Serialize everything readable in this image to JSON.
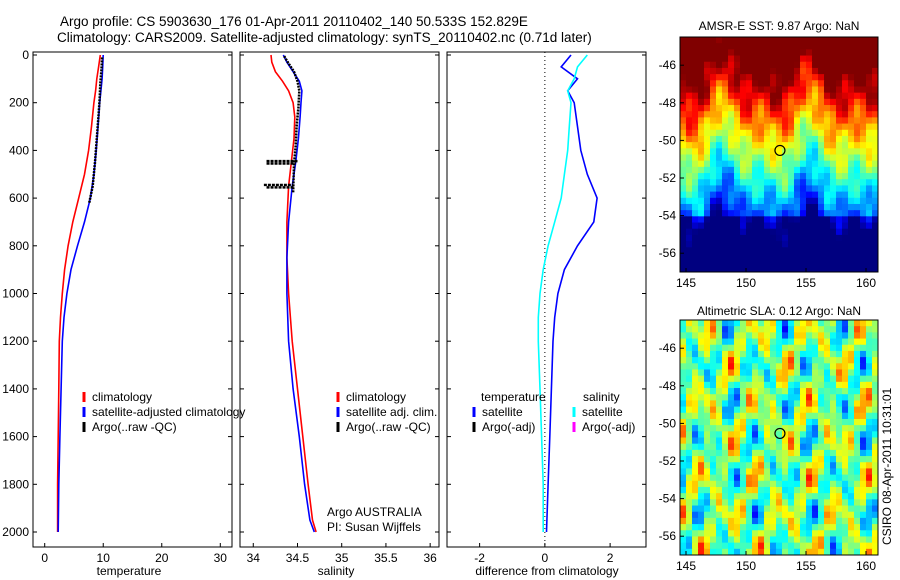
{
  "header": {
    "line1": "Argo profile: CS 5903630_176 01-Apr-2011 20110402_140 50.533S 152.829E",
    "line2": "Climatology: CARS2009. Satellite-adjusted climatology: synTS_20110402.nc (0.71d later)"
  },
  "colors": {
    "climatology": "#ff0000",
    "satellite": "#0000ff",
    "argo": "#000000",
    "sat_salinity": "#00ffff",
    "argo_adj_salinity": "#ff00ff",
    "frame": "#000000"
  },
  "chart_data": [
    {
      "id": "temperature",
      "type": "line",
      "xlabel": "temperature",
      "ylabel": "",
      "xlim": [
        -2,
        32
      ],
      "ylim": [
        2050,
        0
      ],
      "xticks": [
        0,
        10,
        20,
        30
      ],
      "yticks": [
        0,
        200,
        400,
        600,
        800,
        1000,
        1200,
        1400,
        1600,
        1800,
        2000
      ],
      "legend": [
        "climatology",
        "satellite-adjusted climatology",
        "Argo(..raw -QC)"
      ],
      "legend_position": "bottom-right",
      "series": [
        {
          "name": "climatology",
          "color": "#ff0000",
          "x": [
            9.5,
            9.2,
            8.9,
            8.7,
            8.4,
            8.0,
            7.5,
            6.8,
            5.8,
            4.8,
            4.0,
            3.4,
            3.0,
            2.7,
            2.5,
            2.4,
            2.3,
            2.2,
            2.2
          ],
          "y": [
            0,
            50,
            100,
            150,
            200,
            300,
            400,
            500,
            600,
            700,
            800,
            900,
            1000,
            1100,
            1200,
            1400,
            1600,
            1800,
            2000
          ]
        },
        {
          "name": "satellite-adjusted climatology",
          "color": "#0000ff",
          "x": [
            10.0,
            9.9,
            9.8,
            9.6,
            9.4,
            9.1,
            8.8,
            8.4,
            7.8,
            6.8,
            5.6,
            4.5,
            3.8,
            3.3,
            3.0,
            2.8,
            2.6,
            2.4,
            2.3
          ],
          "y": [
            0,
            50,
            100,
            150,
            200,
            300,
            400,
            500,
            600,
            700,
            800,
            900,
            1000,
            1100,
            1200,
            1400,
            1600,
            1800,
            2000
          ]
        },
        {
          "name": "Argo(..raw -QC)",
          "color": "#000000",
          "x": [
            9.8,
            9.7,
            9.5,
            9.4,
            9.2,
            8.9,
            8.6,
            8.2,
            7.6
          ],
          "y": [
            10,
            60,
            120,
            180,
            250,
            350,
            450,
            550,
            620
          ]
        }
      ]
    },
    {
      "id": "salinity",
      "type": "line",
      "xlabel": "salinity",
      "ylabel": "",
      "xlim": [
        33.85,
        36.1
      ],
      "ylim": [
        2050,
        0
      ],
      "xticks": [
        34,
        34.5,
        35,
        35.5,
        36
      ],
      "legend": [
        "climatology",
        "satellite adj. clim.",
        "Argo(..raw -QC)"
      ],
      "legend_position": "bottom-right",
      "annotation": [
        "Argo AUSTRALIA",
        "PI: Susan Wijffels"
      ],
      "series": [
        {
          "name": "climatology",
          "color": "#ff0000",
          "x": [
            34.2,
            34.21,
            34.25,
            34.33,
            34.4,
            34.45,
            34.47,
            34.46,
            34.43,
            34.4,
            34.38,
            34.38,
            34.4,
            34.44,
            34.5,
            34.56,
            34.62,
            34.67,
            34.71
          ],
          "y": [
            0,
            30,
            70,
            110,
            150,
            200,
            260,
            350,
            450,
            550,
            700,
            850,
            1000,
            1200,
            1400,
            1600,
            1800,
            1950,
            2000
          ]
        },
        {
          "name": "satellite adj. clim.",
          "color": "#0000ff",
          "x": [
            34.34,
            34.38,
            34.45,
            34.52,
            34.55,
            34.54,
            34.53,
            34.51,
            34.48,
            34.44,
            34.4,
            34.38,
            34.38,
            34.4,
            34.45,
            34.52,
            34.58,
            34.64,
            34.69
          ],
          "y": [
            0,
            30,
            70,
            110,
            150,
            200,
            260,
            350,
            450,
            550,
            700,
            850,
            1000,
            1200,
            1400,
            1600,
            1800,
            1950,
            2000
          ]
        },
        {
          "name": "Argo(..raw -QC)",
          "color": "#000000",
          "x": [
            34.35,
            34.39,
            34.46,
            34.5,
            34.52,
            34.51,
            34.49,
            34.48,
            34.46,
            34.45
          ],
          "y": [
            5,
            30,
            70,
            110,
            150,
            220,
            300,
            380,
            460,
            580
          ]
        }
      ]
    },
    {
      "id": "difference",
      "type": "line",
      "xlabel": "difference from climatology",
      "ylabel": "",
      "xlim": [
        -3,
        3.1
      ],
      "ylim": [
        2050,
        0
      ],
      "xticks": [
        -2,
        0,
        2
      ],
      "legend_groups": [
        {
          "title": "temperature",
          "items": [
            "satellite",
            "Argo(-adj)"
          ]
        },
        {
          "title": "salinity",
          "items": [
            "satellite",
            "Argo(-adj)"
          ]
        }
      ],
      "legend_position": "bottom",
      "series": [
        {
          "name": "satellite",
          "quantity": "temperature",
          "color": "#0000ff",
          "x": [
            0.8,
            0.5,
            1.0,
            0.7,
            0.9,
            1.0,
            1.1,
            1.3,
            1.6,
            1.5,
            1.0,
            0.6,
            0.4,
            0.3,
            0.25,
            0.2,
            0.15,
            0.1,
            0.05
          ],
          "y": [
            0,
            50,
            100,
            150,
            200,
            300,
            400,
            500,
            600,
            700,
            800,
            900,
            1000,
            1100,
            1200,
            1400,
            1600,
            1800,
            2000
          ]
        },
        {
          "name": "satellite",
          "quantity": "salinity",
          "color": "#00ffff",
          "x": [
            1.3,
            1.0,
            0.9,
            0.7,
            0.8,
            0.75,
            0.7,
            0.6,
            0.5,
            0.3,
            0.1,
            -0.05,
            -0.15,
            -0.2,
            -0.2,
            -0.15,
            -0.1,
            -0.05,
            -0.05
          ],
          "y": [
            0,
            50,
            100,
            150,
            200,
            300,
            400,
            500,
            600,
            700,
            800,
            900,
            1000,
            1100,
            1200,
            1400,
            1600,
            1800,
            2000
          ]
        }
      ]
    },
    {
      "id": "sst-map",
      "type": "heatmap",
      "title": "AMSR-E SST: 9.87 Argo: NaN",
      "xlim": [
        144.5,
        161
      ],
      "ylim": [
        -57,
        -44.5
      ],
      "xticks": [
        145,
        150,
        155,
        160
      ],
      "yticks": [
        -46,
        -48,
        -50,
        -52,
        -54,
        -56
      ],
      "marker": {
        "lon": 152.829,
        "lat": -50.533
      }
    },
    {
      "id": "sla-map",
      "type": "heatmap",
      "title": "Altimetric SLA: 0.12 Argo: NaN",
      "xlim": [
        144.5,
        161
      ],
      "ylim": [
        -57,
        -44.5
      ],
      "xticks": [
        145,
        150,
        155,
        160
      ],
      "yticks": [
        -46,
        -48,
        -50,
        -52,
        -54,
        -56
      ],
      "marker": {
        "lon": 152.829,
        "lat": -50.533
      }
    }
  ],
  "footer": {
    "stamp": "CSIRO 08-Apr-2011 10:31:01"
  }
}
